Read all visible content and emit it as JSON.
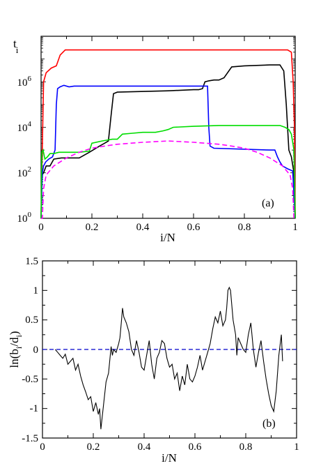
{
  "chart_data": [
    {
      "type": "line",
      "panel_label": "(a)",
      "ylabel_main": "t",
      "ylabel_sub": "i",
      "xlabel": "i/N",
      "xlim": [
        0,
        1
      ],
      "ylim": [
        1,
        100000000
      ],
      "yscale": "log",
      "xticks": [
        "0",
        "0.2",
        "0.4",
        "0.6",
        "0.8",
        "1"
      ],
      "yticks": [
        {
          "base": "10",
          "exp": "0"
        },
        {
          "base": "10",
          "exp": "2"
        },
        {
          "base": "10",
          "exp": "4"
        },
        {
          "base": "10",
          "exp": "6"
        }
      ],
      "series": [
        {
          "color": "#ff0000",
          "dash": "",
          "points": [
            [
              0.0,
              1
            ],
            [
              0.003,
              100
            ],
            [
              0.01,
              1000000
            ],
            [
              0.02,
              2500000
            ],
            [
              0.04,
              4000000
            ],
            [
              0.06,
              5000000
            ],
            [
              0.075,
              15000000
            ],
            [
              0.095,
              25000000
            ],
            [
              0.12,
              25000000
            ],
            [
              0.3,
              25000000
            ],
            [
              0.5,
              25000000
            ],
            [
              0.7,
              25000000
            ],
            [
              0.9,
              25000000
            ],
            [
              0.97,
              25000000
            ],
            [
              0.985,
              20000000
            ],
            [
              0.992,
              1000000
            ],
            [
              0.997,
              10000
            ],
            [
              1.0,
              1
            ]
          ]
        },
        {
          "color": "#000000",
          "dash": "",
          "points": [
            [
              0.0,
              1
            ],
            [
              0.003,
              80
            ],
            [
              0.01,
              100
            ],
            [
              0.02,
              200
            ],
            [
              0.035,
              200
            ],
            [
              0.05,
              400
            ],
            [
              0.08,
              450
            ],
            [
              0.15,
              450
            ],
            [
              0.19,
              800
            ],
            [
              0.23,
              1500
            ],
            [
              0.25,
              2000
            ],
            [
              0.265,
              2500
            ],
            [
              0.275,
              30000
            ],
            [
              0.285,
              300000
            ],
            [
              0.3,
              350000
            ],
            [
              0.5,
              400000
            ],
            [
              0.6,
              450000
            ],
            [
              0.62,
              450000
            ],
            [
              0.635,
              500000
            ],
            [
              0.645,
              1000000
            ],
            [
              0.66,
              1100000
            ],
            [
              0.68,
              1200000
            ],
            [
              0.7,
              1200000
            ],
            [
              0.72,
              1500000
            ],
            [
              0.75,
              4500000
            ],
            [
              0.8,
              5000000
            ],
            [
              0.9,
              5500000
            ],
            [
              0.94,
              5500000
            ],
            [
              0.955,
              3000000
            ],
            [
              0.965,
              100000
            ],
            [
              0.975,
              1000
            ],
            [
              0.985,
              500
            ],
            [
              0.995,
              100
            ],
            [
              1.0,
              1
            ]
          ]
        },
        {
          "color": "#0000ff",
          "dash": "",
          "points": [
            [
              0.0,
              1
            ],
            [
              0.005,
              100
            ],
            [
              0.01,
              200
            ],
            [
              0.018,
              300
            ],
            [
              0.03,
              400
            ],
            [
              0.045,
              500
            ],
            [
              0.055,
              1000
            ],
            [
              0.06,
              100000
            ],
            [
              0.065,
              500000
            ],
            [
              0.075,
              600000
            ],
            [
              0.09,
              700000
            ],
            [
              0.11,
              600000
            ],
            [
              0.13,
              650000
            ],
            [
              0.2,
              650000
            ],
            [
              0.4,
              650000
            ],
            [
              0.6,
              650000
            ],
            [
              0.655,
              650000
            ],
            [
              0.66,
              10000
            ],
            [
              0.665,
              1500
            ],
            [
              0.68,
              1200
            ],
            [
              0.9,
              1000
            ],
            [
              0.92,
              1000
            ],
            [
              0.93,
              500
            ],
            [
              0.94,
              300
            ],
            [
              0.95,
              200
            ],
            [
              0.97,
              150
            ],
            [
              0.99,
              120
            ],
            [
              1.0,
              1
            ]
          ]
        },
        {
          "color": "#00dd00",
          "dash": "",
          "points": [
            [
              0.0,
              1
            ],
            [
              0.003,
              800
            ],
            [
              0.008,
              1000
            ],
            [
              0.015,
              400
            ],
            [
              0.025,
              500
            ],
            [
              0.035,
              700
            ],
            [
              0.05,
              700
            ],
            [
              0.07,
              800
            ],
            [
              0.1,
              800
            ],
            [
              0.15,
              800
            ],
            [
              0.19,
              900
            ],
            [
              0.2,
              2000
            ],
            [
              0.24,
              2500
            ],
            [
              0.28,
              3000
            ],
            [
              0.3,
              3000
            ],
            [
              0.32,
              5000
            ],
            [
              0.36,
              5500
            ],
            [
              0.4,
              6000
            ],
            [
              0.45,
              6000
            ],
            [
              0.48,
              7000
            ],
            [
              0.5,
              8000
            ],
            [
              0.52,
              10000
            ],
            [
              0.6,
              11000
            ],
            [
              0.7,
              12000
            ],
            [
              0.8,
              12000
            ],
            [
              0.9,
              12000
            ],
            [
              0.94,
              12000
            ],
            [
              0.96,
              10000
            ],
            [
              0.975,
              8000
            ],
            [
              0.985,
              5000
            ],
            [
              0.995,
              1000
            ],
            [
              1.0,
              1
            ]
          ]
        },
        {
          "color": "#ff00ff",
          "dash": "7,4",
          "points": [
            [
              0.0,
              1
            ],
            [
              0.005,
              1
            ],
            [
              0.01,
              20
            ],
            [
              0.02,
              80
            ],
            [
              0.05,
              200
            ],
            [
              0.1,
              450
            ],
            [
              0.15,
              800
            ],
            [
              0.2,
              1200
            ],
            [
              0.25,
              1500
            ],
            [
              0.3,
              1800
            ],
            [
              0.4,
              2200
            ],
            [
              0.5,
              2500
            ],
            [
              0.6,
              2200
            ],
            [
              0.7,
              1800
            ],
            [
              0.75,
              1500
            ],
            [
              0.8,
              1200
            ],
            [
              0.85,
              800
            ],
            [
              0.9,
              450
            ],
            [
              0.95,
              200
            ],
            [
              0.98,
              80
            ],
            [
              0.99,
              20
            ],
            [
              0.995,
              1
            ],
            [
              1.0,
              1
            ]
          ]
        }
      ]
    },
    {
      "type": "line",
      "panel_label": "(b)",
      "ylabel_main": "ln(b",
      "ylabel_sub1": "i",
      "ylabel_mid": "/d",
      "ylabel_sub2": "i",
      "ylabel_end": ")",
      "xlabel": "i/N",
      "xlim": [
        0,
        1
      ],
      "ylim": [
        -1.5,
        1.5
      ],
      "xticks": [
        "0",
        "0.2",
        "0.4",
        "0.6",
        "0.8",
        "1"
      ],
      "yticks": [
        "-1.5",
        "-1",
        "-0.5",
        "0",
        "0.5",
        "1",
        "1.5"
      ],
      "reference_line": {
        "y": 0,
        "color": "#0000cc",
        "dash": "6,4"
      },
      "series": [
        {
          "color": "#000000",
          "dash": "",
          "points": [
            [
              0.05,
              0.0
            ],
            [
              0.06,
              -0.05
            ],
            [
              0.07,
              -0.1
            ],
            [
              0.08,
              -0.15
            ],
            [
              0.09,
              -0.08
            ],
            [
              0.1,
              -0.25
            ],
            [
              0.11,
              -0.2
            ],
            [
              0.12,
              -0.15
            ],
            [
              0.13,
              -0.35
            ],
            [
              0.14,
              -0.25
            ],
            [
              0.15,
              -0.45
            ],
            [
              0.16,
              -0.6
            ],
            [
              0.17,
              -0.72
            ],
            [
              0.18,
              -0.85
            ],
            [
              0.19,
              -0.8
            ],
            [
              0.2,
              -1.05
            ],
            [
              0.21,
              -0.9
            ],
            [
              0.22,
              -1.1
            ],
            [
              0.225,
              -1.0
            ],
            [
              0.23,
              -1.35
            ],
            [
              0.24,
              -0.95
            ],
            [
              0.25,
              -0.55
            ],
            [
              0.26,
              -0.4
            ],
            [
              0.27,
              0.05
            ],
            [
              0.275,
              -0.1
            ],
            [
              0.28,
              0.0
            ],
            [
              0.29,
              -0.05
            ],
            [
              0.3,
              0.1
            ],
            [
              0.305,
              0.2
            ],
            [
              0.31,
              0.45
            ],
            [
              0.315,
              0.7
            ],
            [
              0.32,
              0.55
            ],
            [
              0.33,
              0.45
            ],
            [
              0.34,
              0.3
            ],
            [
              0.35,
              0.0
            ],
            [
              0.36,
              -0.1
            ],
            [
              0.37,
              0.15
            ],
            [
              0.38,
              -0.05
            ],
            [
              0.39,
              -0.3
            ],
            [
              0.4,
              -0.35
            ],
            [
              0.41,
              -0.1
            ],
            [
              0.42,
              0.15
            ],
            [
              0.43,
              -0.25
            ],
            [
              0.44,
              -0.5
            ],
            [
              0.45,
              -0.15
            ],
            [
              0.46,
              -0.05
            ],
            [
              0.47,
              0.15
            ],
            [
              0.48,
              0.1
            ],
            [
              0.49,
              -0.15
            ],
            [
              0.5,
              -0.3
            ],
            [
              0.51,
              -0.25
            ],
            [
              0.52,
              -0.5
            ],
            [
              0.53,
              -0.4
            ],
            [
              0.54,
              -0.7
            ],
            [
              0.55,
              -0.45
            ],
            [
              0.56,
              -0.6
            ],
            [
              0.57,
              -0.25
            ],
            [
              0.58,
              -0.5
            ],
            [
              0.59,
              -0.55
            ],
            [
              0.6,
              -0.45
            ],
            [
              0.61,
              -0.3
            ],
            [
              0.62,
              -0.1
            ],
            [
              0.63,
              -0.35
            ],
            [
              0.64,
              -0.2
            ],
            [
              0.65,
              -0.05
            ],
            [
              0.66,
              0.1
            ],
            [
              0.67,
              0.35
            ],
            [
              0.68,
              0.55
            ],
            [
              0.69,
              0.45
            ],
            [
              0.7,
              0.65
            ],
            [
              0.71,
              0.4
            ],
            [
              0.72,
              0.5
            ],
            [
              0.725,
              0.7
            ],
            [
              0.73,
              1.0
            ],
            [
              0.735,
              1.05
            ],
            [
              0.74,
              1.0
            ],
            [
              0.75,
              0.5
            ],
            [
              0.76,
              0.25
            ],
            [
              0.765,
              -0.1
            ],
            [
              0.77,
              0.2
            ],
            [
              0.78,
              0.1
            ],
            [
              0.79,
              0.0
            ],
            [
              0.8,
              -0.05
            ],
            [
              0.81,
              0.25
            ],
            [
              0.82,
              0.45
            ],
            [
              0.83,
              0.0
            ],
            [
              0.84,
              -0.3
            ],
            [
              0.85,
              -0.05
            ],
            [
              0.86,
              0.15
            ],
            [
              0.87,
              -0.2
            ],
            [
              0.88,
              -0.5
            ],
            [
              0.89,
              -0.75
            ],
            [
              0.9,
              -0.95
            ],
            [
              0.91,
              -1.05
            ],
            [
              0.92,
              -0.7
            ],
            [
              0.93,
              -0.1
            ],
            [
              0.94,
              0.25
            ],
            [
              0.945,
              -0.2
            ]
          ]
        }
      ]
    }
  ]
}
